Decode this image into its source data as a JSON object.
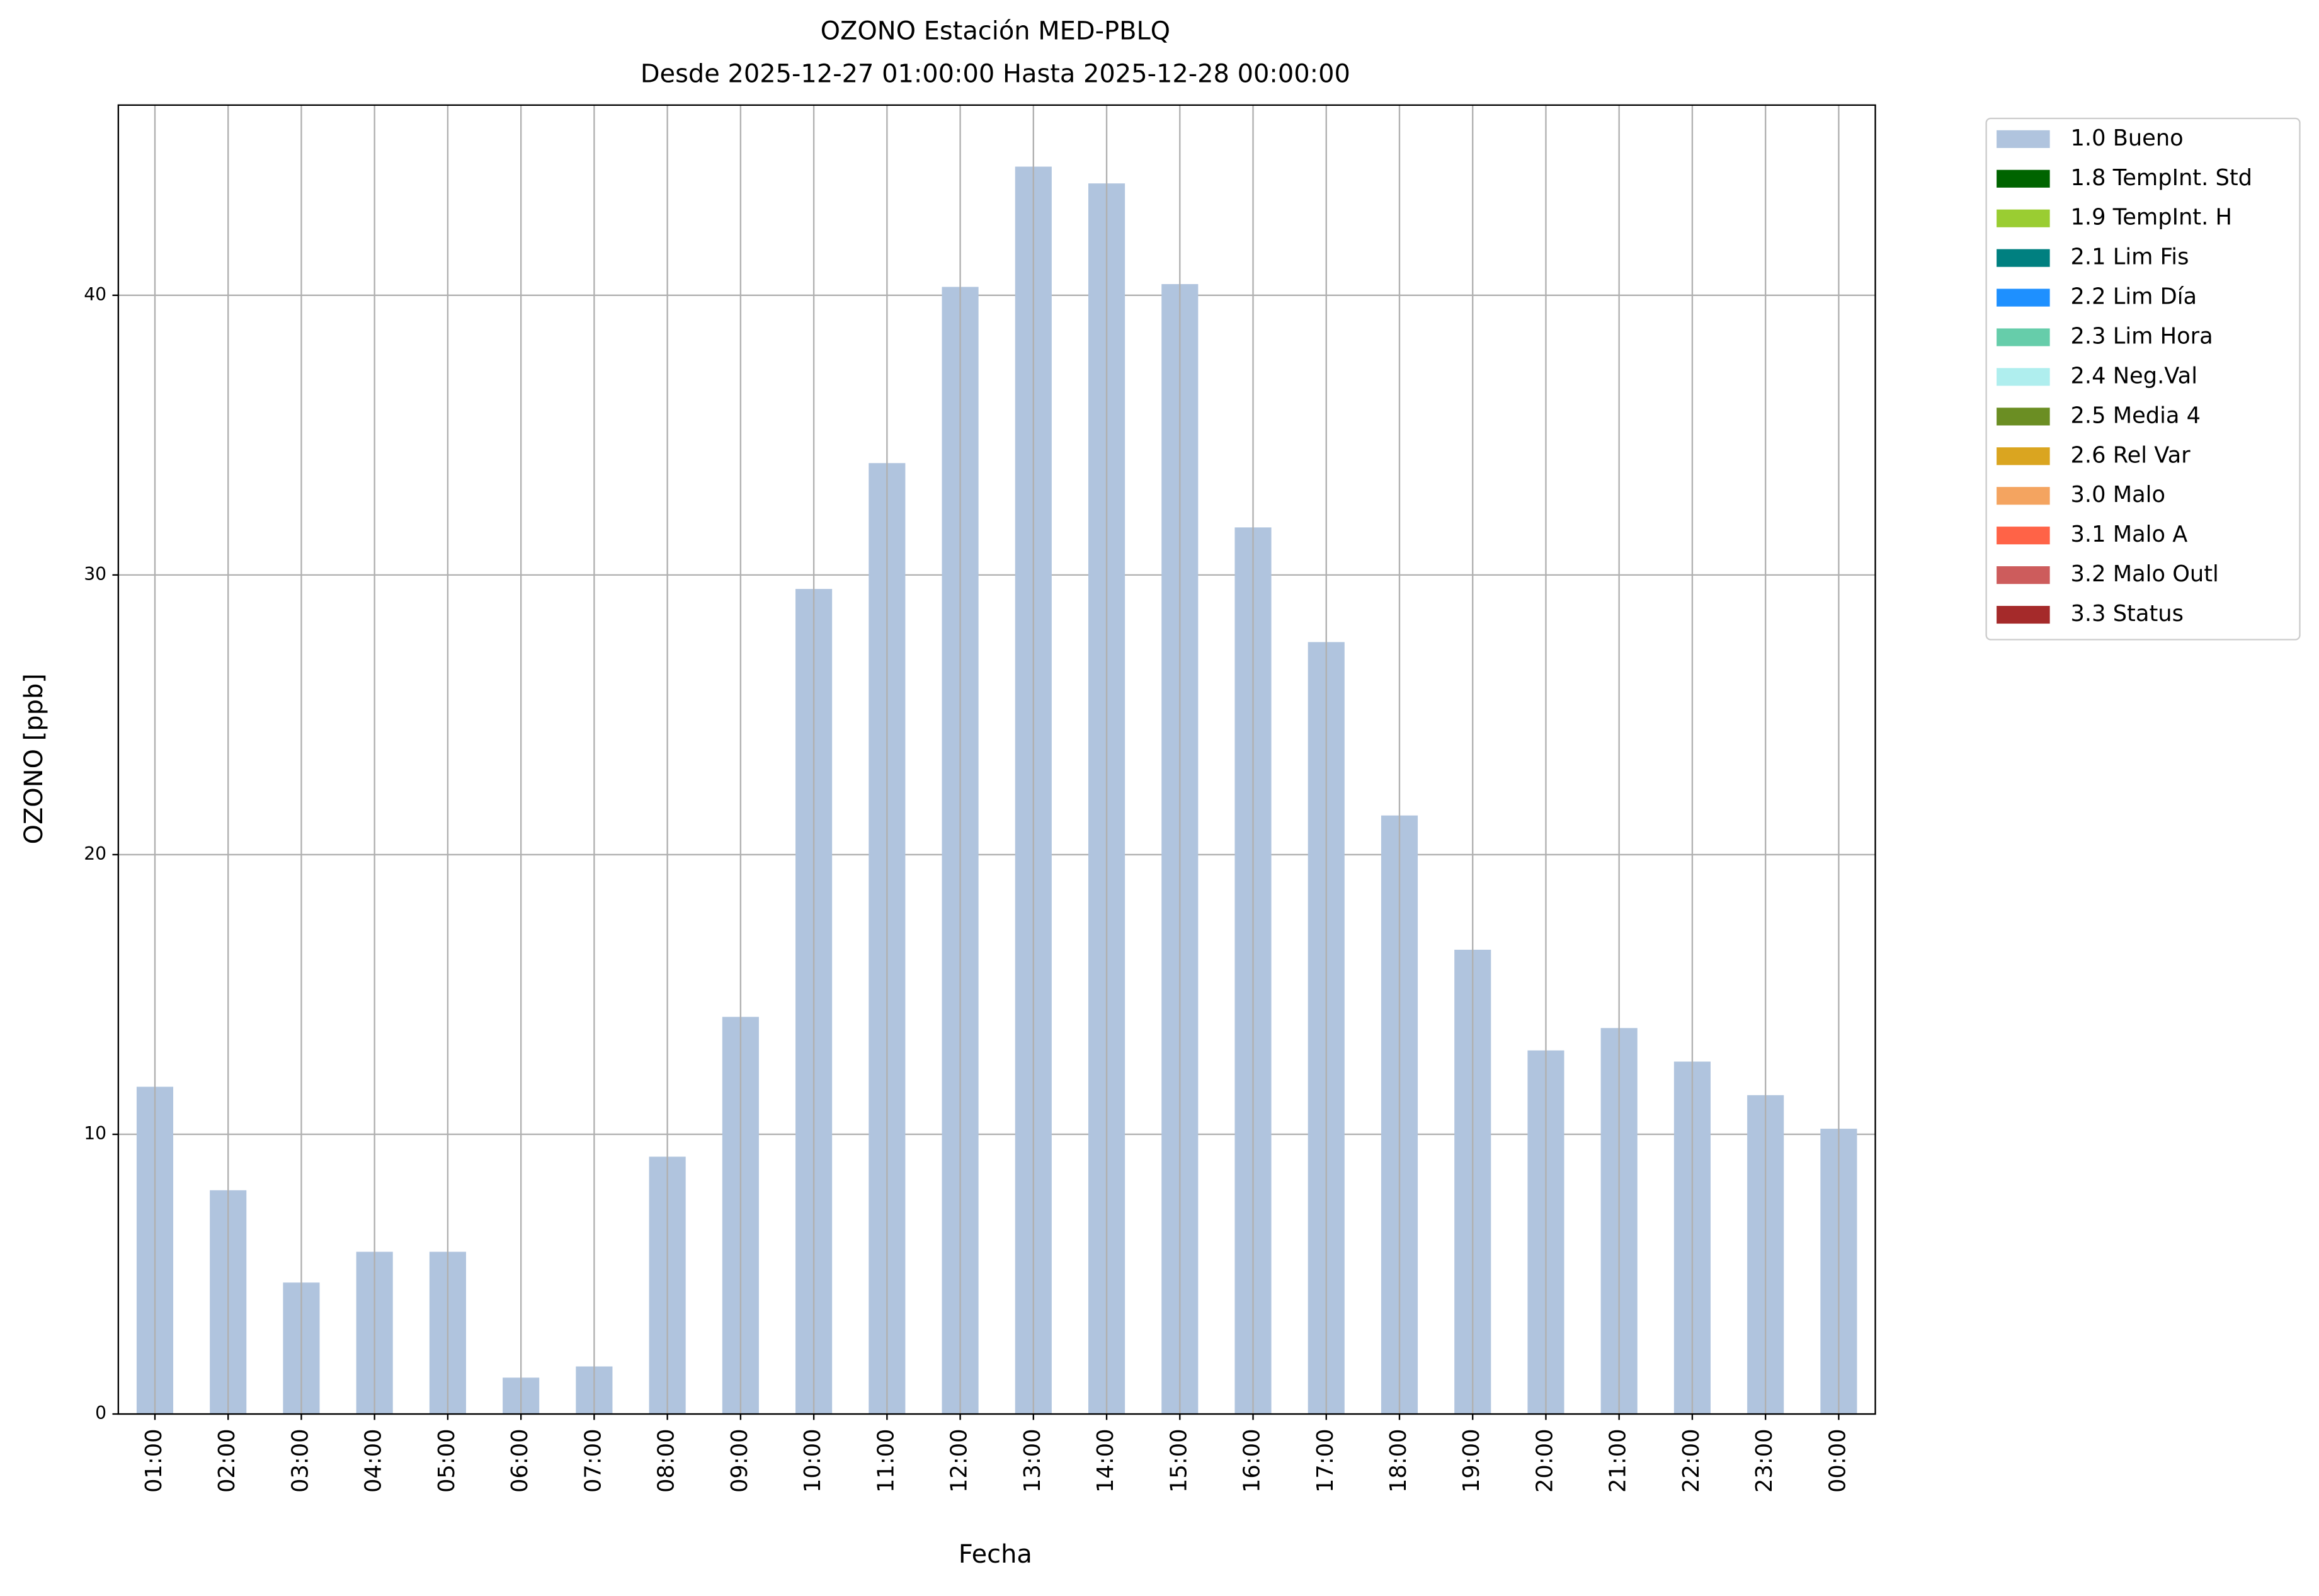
{
  "chart_data": {
    "type": "bar",
    "title": "OZONO Estación MED-PBLQ",
    "subtitle": "Desde 2025-12-27 01:00:00 Hasta 2025-12-28 00:00:00",
    "x_label": "Fecha",
    "y_label": "OZONO [ppb]",
    "categories": [
      "01:00",
      "02:00",
      "03:00",
      "04:00",
      "05:00",
      "06:00",
      "07:00",
      "08:00",
      "09:00",
      "10:00",
      "11:00",
      "12:00",
      "13:00",
      "14:00",
      "15:00",
      "16:00",
      "17:00",
      "18:00",
      "19:00",
      "20:00",
      "21:00",
      "22:00",
      "23:00",
      "00:00"
    ],
    "series": [
      {
        "name": "1.0 Bueno",
        "color": "#b0c4de",
        "values": [
          11.7,
          8.0,
          4.7,
          5.8,
          5.8,
          1.3,
          1.7,
          9.2,
          14.2,
          29.5,
          34.0,
          40.3,
          44.6,
          44.0,
          40.4,
          31.7,
          27.6,
          21.4,
          16.6,
          13.0,
          13.8,
          12.6,
          11.4,
          10.2
        ]
      }
    ],
    "legend": [
      {
        "name": "1.8 TempInt. Std",
        "color": "#006400"
      },
      {
        "name": "1.9 TempInt. H",
        "color": "#9acd32"
      },
      {
        "name": "2.1 Lim Fis",
        "color": "#008080"
      },
      {
        "name": "2.2 Lim Día",
        "color": "#1e90ff"
      },
      {
        "name": "2.3 Lim Hora",
        "color": "#66cdaa"
      },
      {
        "name": "2.4 Neg.Val",
        "color": "#afeeee"
      },
      {
        "name": "2.5 Media 4",
        "color": "#6b8e23"
      },
      {
        "name": "2.6 Rel Var",
        "color": "#daa520"
      },
      {
        "name": "3.0 Malo",
        "color": "#f4a460"
      },
      {
        "name": "3.1 Malo A",
        "color": "#ff6347"
      },
      {
        "name": "3.2 Malo Outl",
        "color": "#cd5c5c"
      },
      {
        "name": "3.3 Status",
        "color": "#a52a2a"
      }
    ],
    "legend_position": "outside-upper-right",
    "ylim": [
      0,
      46.8
    ],
    "yticks": [
      0,
      10,
      20,
      30,
      40
    ],
    "grid": true
  }
}
